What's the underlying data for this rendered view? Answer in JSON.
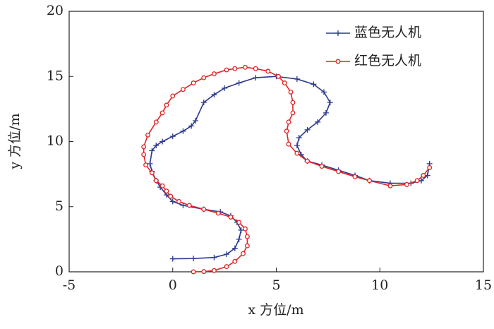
{
  "chart_data": {
    "type": "line",
    "xlabel": "x 方位/m",
    "ylabel": "y 方位/m",
    "xlim": [
      -5,
      15
    ],
    "xticks": [
      -5,
      0,
      5,
      10,
      15
    ],
    "ylim": [
      0,
      20
    ],
    "yticks": [
      0,
      5,
      10,
      15,
      20
    ],
    "legend": "upper right",
    "series": [
      {
        "name": "蓝色无人机",
        "color": "#2b3a8c",
        "marker": "+",
        "x": [
          0,
          1,
          2,
          2.6,
          3,
          3.2,
          3.3,
          3.1,
          2.8,
          2.3,
          1.5,
          0.5,
          0,
          -0.3,
          -0.6,
          -0.8,
          -1,
          -1.1,
          -1,
          -0.8,
          -0.5,
          0,
          0.5,
          0.9,
          1.1,
          1.5,
          2,
          2.5,
          3.2,
          4,
          5,
          6,
          6.8,
          7.3,
          7.6,
          7.4,
          7,
          6.5,
          6.1,
          6,
          6.2,
          6.5,
          7.2,
          8,
          8.8,
          9.5,
          10.5,
          11.5,
          12,
          12.3,
          12.4
        ],
        "y": [
          1,
          1.02,
          1.1,
          1.35,
          1.8,
          2.5,
          3.2,
          3.8,
          4.3,
          4.6,
          4.8,
          5.1,
          5.4,
          5.9,
          6.5,
          7,
          7.7,
          8.3,
          9.3,
          9.7,
          10,
          10.4,
          10.8,
          11.2,
          11.6,
          13,
          13.6,
          14.1,
          14.5,
          14.9,
          15,
          14.8,
          14.4,
          13.8,
          13,
          12.2,
          11.5,
          10.9,
          10.3,
          9.7,
          9,
          8.5,
          8.2,
          7.8,
          7.4,
          7,
          6.8,
          6.8,
          7,
          7.4,
          8.3
        ]
      },
      {
        "name": "红色无人机",
        "color": "#e02424",
        "marker": "o",
        "x": [
          1,
          1.5,
          2,
          2.6,
          3,
          3.4,
          3.6,
          3.6,
          3.5,
          3.2,
          2.8,
          2.2,
          1.5,
          0.8,
          0.3,
          -0.1,
          -0.3,
          -0.5,
          -0.8,
          -1,
          -1.3,
          -1.4,
          -1.4,
          -1.2,
          -0.8,
          -0.5,
          -0.3,
          0,
          0.5,
          1,
          1.5,
          2,
          2.6,
          3,
          3.5,
          4,
          4.6,
          5.1,
          5.4,
          5.7,
          5.8,
          5.8,
          5.6,
          5.5,
          5.6,
          6,
          6.5,
          7.2,
          8,
          8.8,
          9.5,
          10.5,
          11.3,
          11.8,
          12.1,
          12.4
        ],
        "y": [
          0,
          0.02,
          0.1,
          0.4,
          0.8,
          1.4,
          2,
          2.7,
          3.3,
          3.8,
          4.2,
          4.5,
          4.8,
          5.1,
          5.4,
          5.8,
          6.2,
          6.6,
          7,
          7.6,
          8.2,
          9,
          9.6,
          10.5,
          11.5,
          12.2,
          12.8,
          13.5,
          14,
          14.5,
          14.9,
          15.2,
          15.5,
          15.6,
          15.7,
          15.6,
          15.4,
          15,
          14.5,
          13.8,
          13,
          12.2,
          11.5,
          10.8,
          9.8,
          9.1,
          8.5,
          8.1,
          7.7,
          7.3,
          7,
          6.6,
          6.7,
          7,
          7.4,
          8
        ]
      }
    ]
  }
}
